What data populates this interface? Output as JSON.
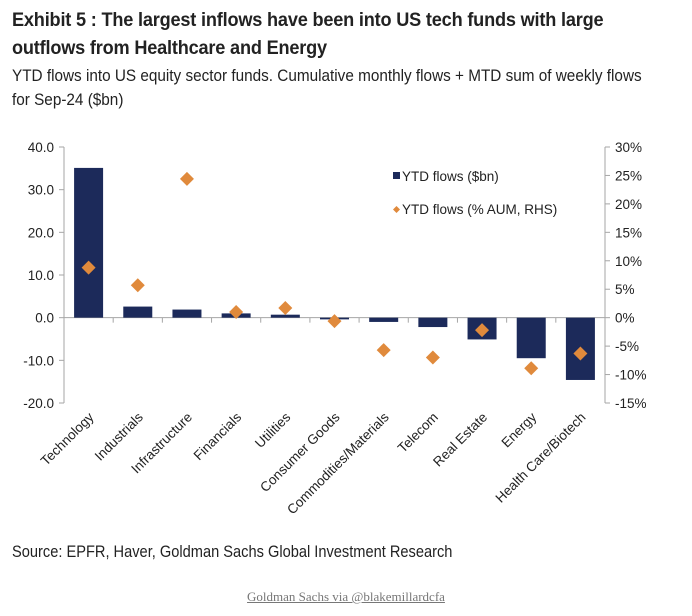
{
  "header": {
    "title": "Exhibit 5 : The largest inflows have been into US tech funds with large outflows from Healthcare and Energy",
    "subtitle": "YTD flows into US equity sector funds. Cumulative monthly flows + MTD sum of weekly flows for Sep-24 ($bn)"
  },
  "footer": {
    "source": "Source: EPFR, Haver, Goldman Sachs Global Investment Research",
    "credit": "Goldman Sachs via @blakemillardcfa"
  },
  "colors": {
    "bar": "#1c2a5a",
    "marker": "#e08a3c",
    "axis": "#a6a6a6"
  },
  "chart_data": {
    "type": "bar",
    "title": "",
    "xlabel": "",
    "ylabel": "",
    "categories": [
      "Technology",
      "Industrials",
      "Infrastructure",
      "Financials",
      "Utilities",
      "Consumer Goods",
      "Commodities/Materials",
      "Telecom",
      "Real Estate",
      "Energy",
      "Health Care/Biotech"
    ],
    "series": [
      {
        "name": "YTD flows ($bn)",
        "type": "bar",
        "axis": "left",
        "values": [
          35.1,
          2.6,
          1.9,
          1.0,
          0.7,
          -0.4,
          -1.0,
          -2.2,
          -5.1,
          -9.5,
          -14.6
        ]
      },
      {
        "name": "YTD flows (% AUM, RHS)",
        "type": "scatter",
        "marker": "diamond",
        "axis": "right",
        "values": [
          8.8,
          5.7,
          24.4,
          1.0,
          1.7,
          -0.6,
          -5.7,
          -7.0,
          -2.2,
          -8.9,
          -6.3
        ]
      }
    ],
    "ylim": [
      -20,
      40
    ],
    "yticks": [
      40,
      30,
      20,
      10,
      0,
      -10,
      -20
    ],
    "ytick_labels": [
      "40.0",
      "30.0",
      "20.0",
      "10.0",
      "0.0",
      "-10.0",
      "-20.0"
    ],
    "y2lim": [
      -15,
      30
    ],
    "y2ticks": [
      30,
      25,
      20,
      15,
      10,
      5,
      0,
      -5,
      -10,
      -15
    ],
    "y2tick_labels": [
      "30%",
      "25%",
      "20%",
      "15%",
      "10%",
      "5%",
      "0%",
      "-5%",
      "-10%",
      "-15%"
    ],
    "legend": [
      "YTD flows ($bn)",
      "YTD flows (% AUM, RHS)"
    ],
    "legend_position": "top-right",
    "grid": false
  }
}
